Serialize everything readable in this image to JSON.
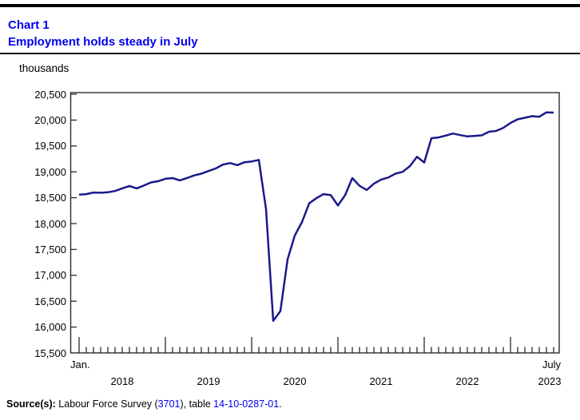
{
  "header": {
    "chart_label": "Chart 1",
    "title": "Employment holds steady in July",
    "title_color": "#0000EE"
  },
  "chart_data": {
    "type": "line",
    "title": "Employment holds steady in July",
    "unit_label": "thousands",
    "grid": false,
    "legend": "none",
    "y_axis": {
      "min": 15500,
      "max": 20500,
      "tick_step": 500,
      "tick_labels": [
        "20,500",
        "20,000",
        "19,500",
        "19,000",
        "18,500",
        "18,000",
        "17,500",
        "17,000",
        "16,500",
        "16,000",
        "15,500"
      ]
    },
    "x_axis": {
      "start": "2018-01",
      "end": "2023-07",
      "frequency": "monthly",
      "first_tick_label": "Jan.",
      "last_tick_label": "July",
      "year_labels": [
        "2018",
        "2019",
        "2020",
        "2021",
        "2022",
        "2023"
      ]
    },
    "series": [
      {
        "name": "Employment (thousands)",
        "color": "#1a1a8c",
        "values": [
          18560,
          18570,
          18600,
          18595,
          18605,
          18630,
          18680,
          18725,
          18680,
          18735,
          18795,
          18820,
          18865,
          18880,
          18835,
          18880,
          18930,
          18965,
          19015,
          19065,
          19140,
          19170,
          19130,
          19185,
          19200,
          19230,
          18280,
          16120,
          16310,
          17310,
          17770,
          18030,
          18390,
          18490,
          18570,
          18550,
          18350,
          18550,
          18880,
          18730,
          18650,
          18770,
          18850,
          18890,
          18965,
          19000,
          19110,
          19290,
          19180,
          19650,
          19665,
          19700,
          19740,
          19710,
          19685,
          19695,
          19705,
          19775,
          19790,
          19850,
          19945,
          20015,
          20045,
          20075,
          20065,
          20150,
          20145
        ]
      }
    ],
    "frame_color": "#2b2b2b"
  },
  "source": {
    "prefix": "Source(s):",
    "text1": " Labour Force Survey (",
    "link1": "3701",
    "text2": "), table ",
    "link2": "14-10-0287-01",
    "suffix": ".",
    "link_color": "#0000EE"
  }
}
